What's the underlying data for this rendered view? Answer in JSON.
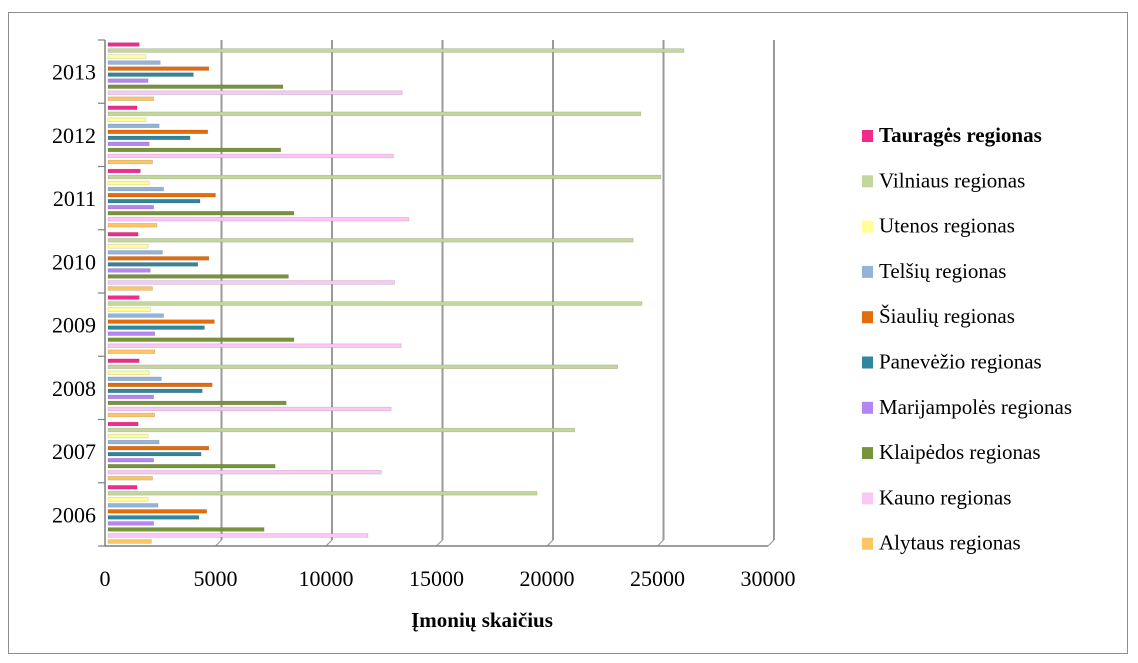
{
  "chart_data": {
    "type": "bar",
    "orientation": "horizontal",
    "grouped": true,
    "title": "",
    "xlabel": "Įmonių skaičius",
    "ylabel": "",
    "xlim": [
      0,
      30000
    ],
    "x_ticks": [
      0,
      5000,
      10000,
      15000,
      20000,
      25000,
      30000
    ],
    "x_tick_labels": [
      "0",
      "5000",
      "10000",
      "15000",
      "20000",
      "25000",
      "30000"
    ],
    "grid": "vertical",
    "legend_position": "right",
    "categories": [
      "2006",
      "2007",
      "2008",
      "2009",
      "2010",
      "2011",
      "2012",
      "2013"
    ],
    "series": [
      {
        "name": "Alytaus regionas",
        "color": "#fcc664",
        "values": [
          2100,
          2150,
          2250,
          2250,
          2150,
          2350,
          2150,
          2200
        ]
      },
      {
        "name": "Kauno regionas",
        "color": "#f9c8f4",
        "values": [
          11900,
          12500,
          12950,
          13400,
          13100,
          13750,
          13050,
          13450
        ]
      },
      {
        "name": "Klaipėdos regionas",
        "color": "#77933c",
        "values": [
          7200,
          7700,
          8200,
          8550,
          8300,
          8550,
          7950,
          8050
        ]
      },
      {
        "name": "Marijampolės regionas",
        "color": "#b585f2",
        "values": [
          2200,
          2200,
          2200,
          2250,
          2050,
          2200,
          2000,
          1950
        ]
      },
      {
        "name": "Panevėžio regionas",
        "color": "#31859c",
        "values": [
          4250,
          4350,
          4400,
          4500,
          4200,
          4300,
          3850,
          4000
        ]
      },
      {
        "name": "Šiaulių regionas",
        "color": "#e46c0a",
        "values": [
          4600,
          4700,
          4850,
          4950,
          4700,
          5000,
          4650,
          4700
        ]
      },
      {
        "name": "Telšių regionas",
        "color": "#95b3d7",
        "values": [
          2400,
          2450,
          2550,
          2650,
          2600,
          2650,
          2450,
          2500
        ]
      },
      {
        "name": "Utenos regionas",
        "color": "#ffff99",
        "values": [
          1950,
          1950,
          2000,
          2050,
          1950,
          2000,
          1850,
          1850
        ]
      },
      {
        "name": "Vilniaus regionas",
        "color": "#c3d69b",
        "values": [
          19550,
          21250,
          23200,
          24300,
          23900,
          25150,
          24250,
          26200
        ]
      },
      {
        "name": "Tauragės regionas",
        "color": "#f02b8c",
        "values": [
          1450,
          1500,
          1550,
          1550,
          1500,
          1600,
          1450,
          1550
        ]
      }
    ]
  }
}
